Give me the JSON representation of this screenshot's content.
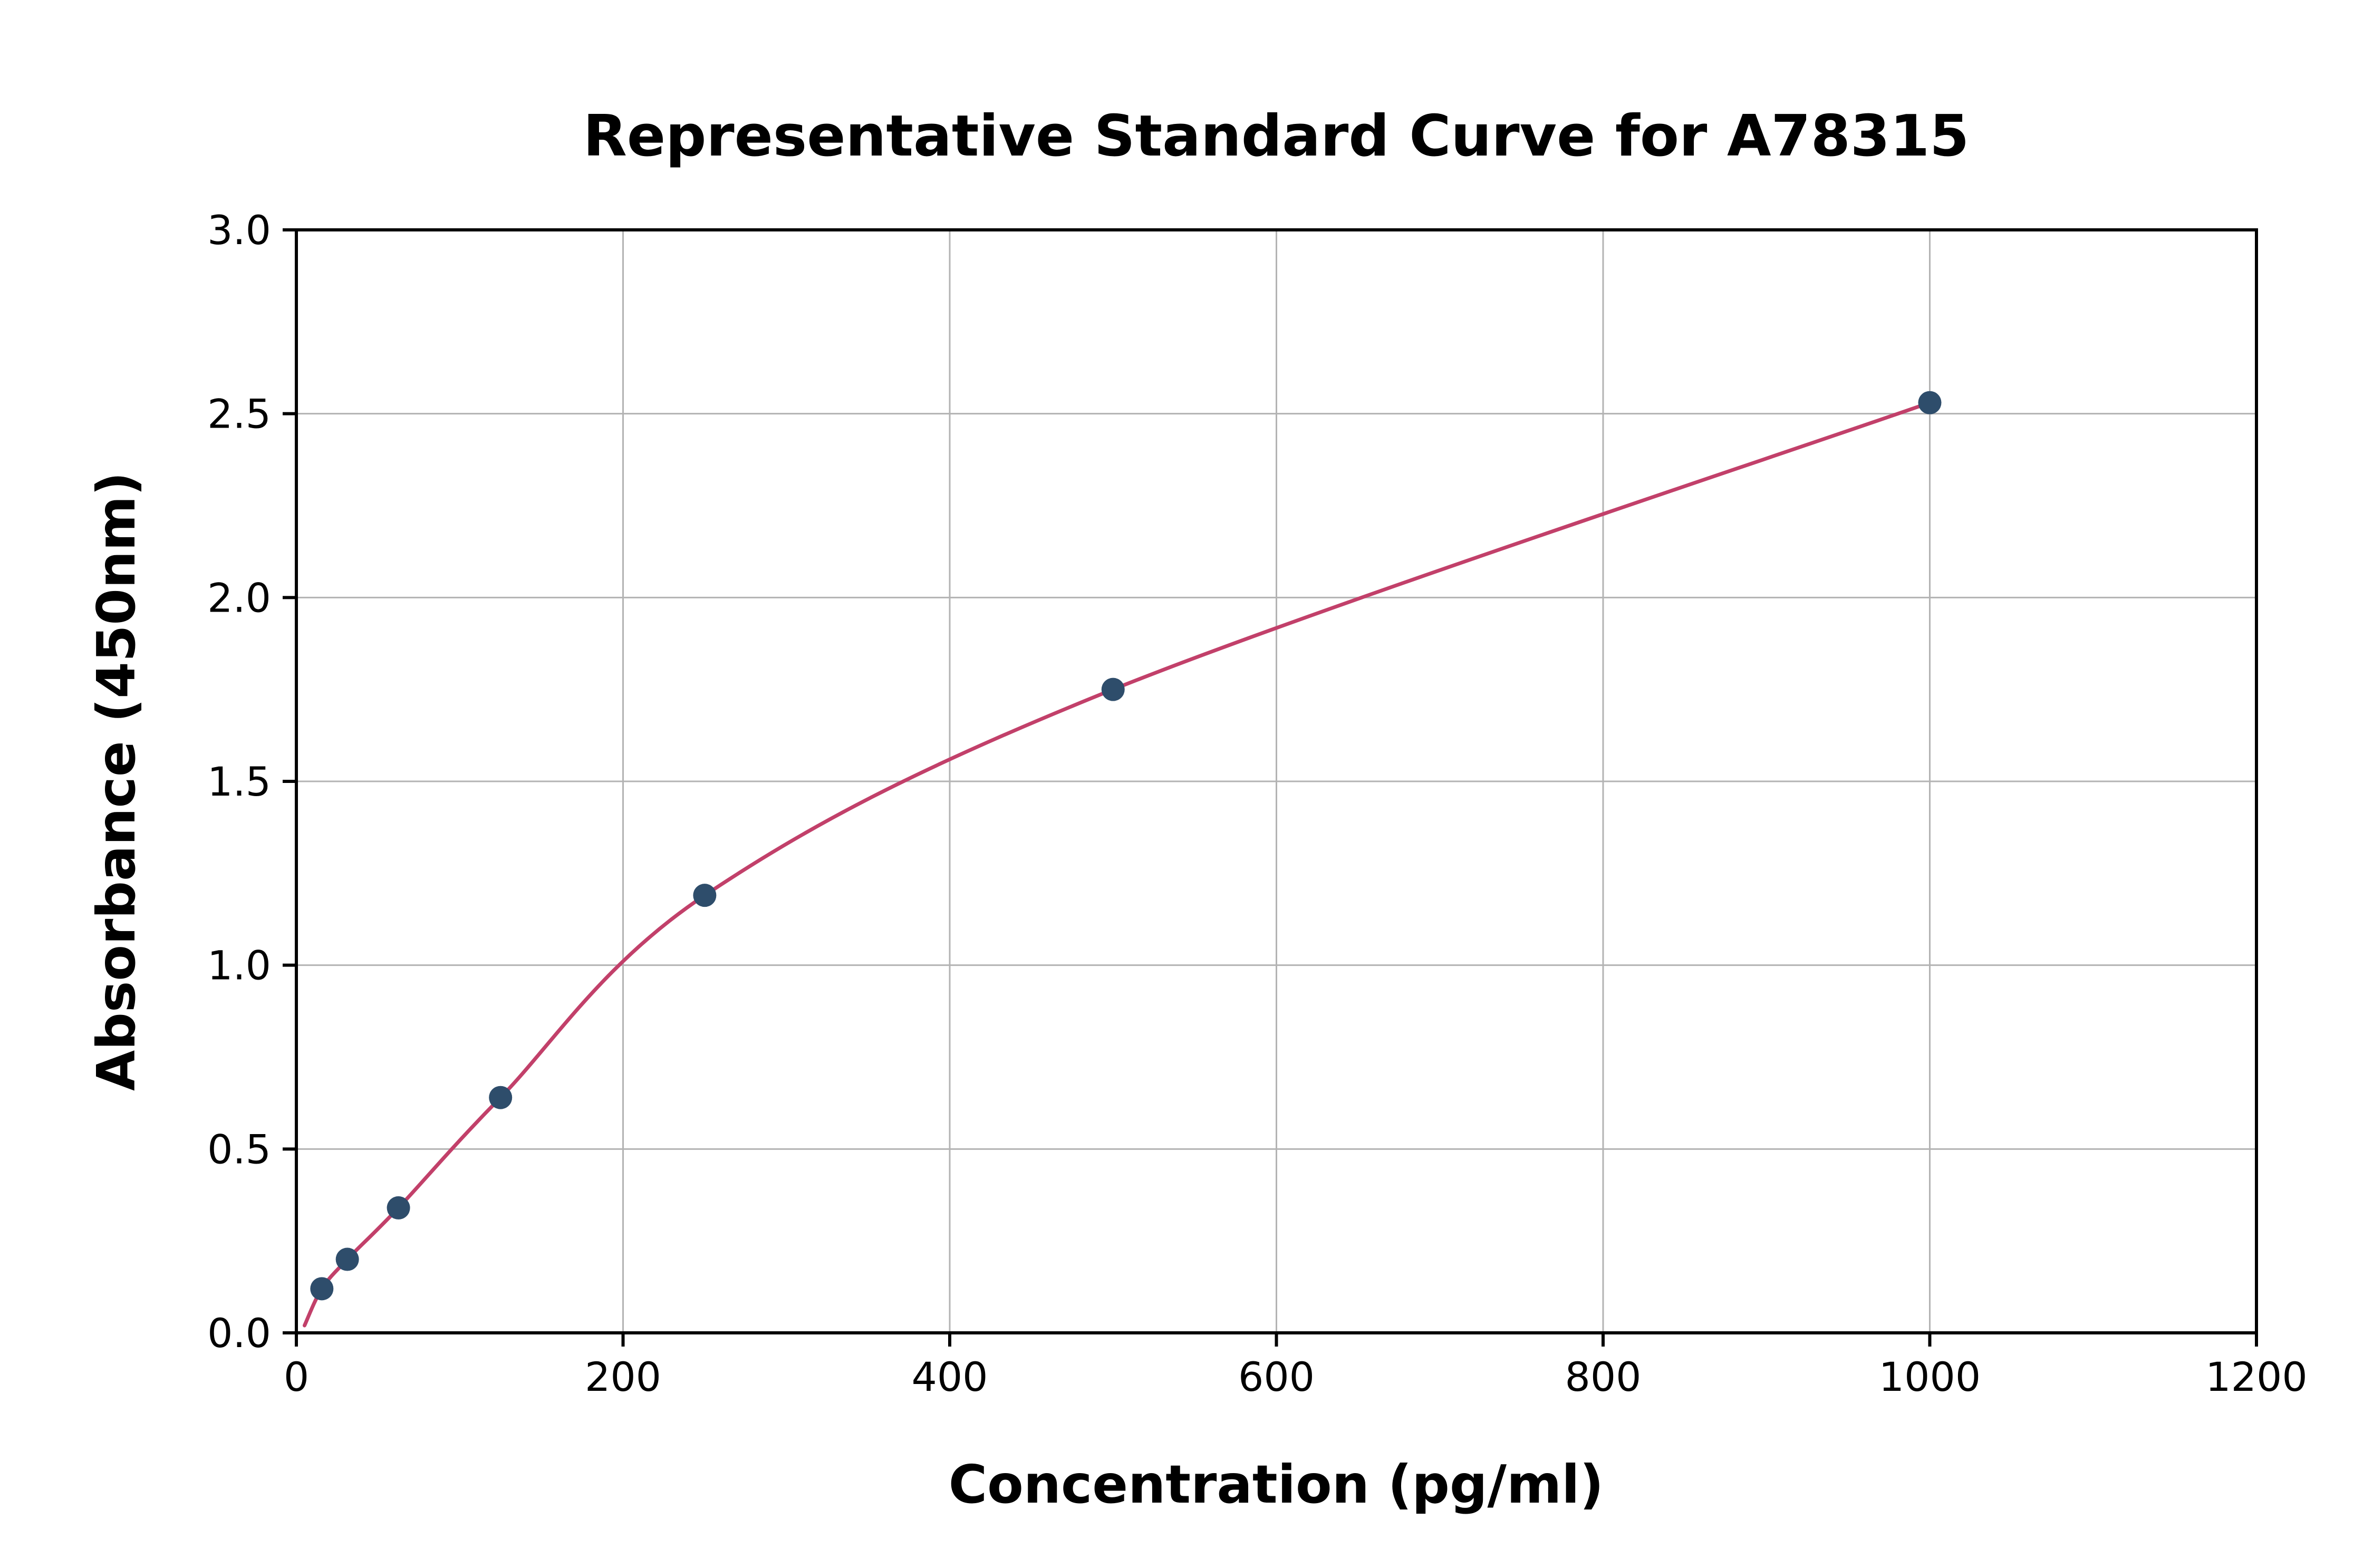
{
  "page": {
    "background_color": "#ffffff"
  },
  "chart_data": {
    "type": "scatter",
    "title": "Representative Standard Curve for A78315",
    "xlabel": "Concentration (pg/ml)",
    "ylabel": "Absorbance (450nm)",
    "xlim": [
      0,
      1200
    ],
    "ylim": [
      0,
      3.0
    ],
    "x_ticks": [
      0,
      200,
      400,
      600,
      800,
      1000,
      1200
    ],
    "x_tick_labels": [
      "0",
      "200",
      "400",
      "600",
      "800",
      "1000",
      "1200"
    ],
    "y_ticks": [
      0,
      0.5,
      1.0,
      1.5,
      2.0,
      2.5,
      3.0
    ],
    "y_tick_labels": [
      "0.0",
      "0.5",
      "1.0",
      "1.5",
      "2.0",
      "2.5",
      "3.0"
    ],
    "grid": true,
    "legend_position": "none",
    "series": [
      {
        "name": "standard-points",
        "type": "scatter",
        "color": "#2e4d6b",
        "points": [
          {
            "x": 15.6,
            "y": 0.12
          },
          {
            "x": 31.2,
            "y": 0.2
          },
          {
            "x": 62.5,
            "y": 0.34
          },
          {
            "x": 125,
            "y": 0.64
          },
          {
            "x": 250,
            "y": 1.19
          },
          {
            "x": 500,
            "y": 1.75
          },
          {
            "x": 1000,
            "y": 2.53
          }
        ]
      },
      {
        "name": "fitted-curve",
        "type": "line",
        "color": "#c2406a",
        "points": [
          {
            "x": 5,
            "y": 0.02
          },
          {
            "x": 15.6,
            "y": 0.12
          },
          {
            "x": 31.2,
            "y": 0.2
          },
          {
            "x": 62.5,
            "y": 0.34
          },
          {
            "x": 125,
            "y": 0.64
          },
          {
            "x": 250,
            "y": 1.19
          },
          {
            "x": 500,
            "y": 1.75
          },
          {
            "x": 1000,
            "y": 2.53
          }
        ]
      }
    ],
    "grid_color": "#b3b3b3",
    "axis_color": "#000000",
    "text_color": "#000000"
  }
}
